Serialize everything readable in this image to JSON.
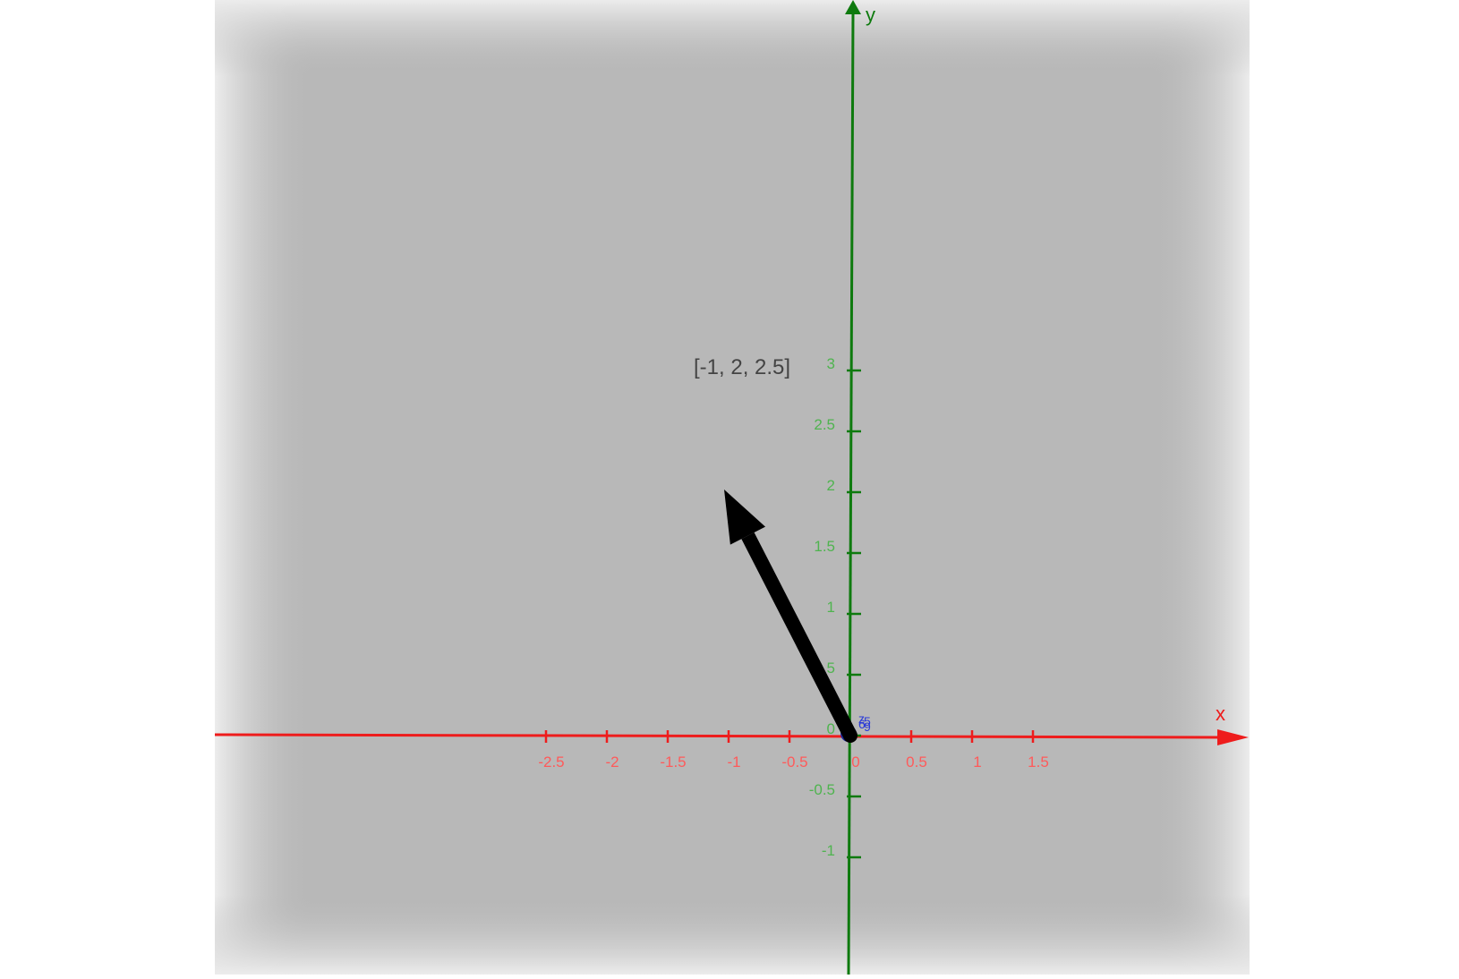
{
  "view": {
    "x_axis": {
      "label": "x",
      "color": "#ee1c1c",
      "ticks": [
        -2.5,
        -2,
        -1.5,
        -1,
        -0.5,
        0,
        0.5,
        1,
        1.5
      ],
      "tick_labels": [
        "-2.5",
        "-2",
        "-1.5",
        "-1",
        "-0.5",
        "0",
        "0.5",
        "1",
        "1.5"
      ],
      "range": [
        -2.6,
        1.6
      ]
    },
    "y_axis": {
      "label": "y",
      "color": "#0e7a0e",
      "ticks": [
        -1,
        -0.5,
        0,
        0.5,
        1,
        1.5,
        2,
        2.5,
        3
      ],
      "tick_labels": [
        "-1",
        "-0.5",
        "0",
        "0.5",
        "1",
        "1.5",
        "2",
        "2.5",
        "3"
      ],
      "range": [
        -1.05,
        3.0
      ]
    },
    "background": "#b8b8b8",
    "origin_marker_labels": [
      "z",
      "5",
      "6",
      "9"
    ],
    "origin_marker_color": "#2a3ad8"
  },
  "vector": {
    "label": "[-1, 2, 2.5]",
    "tail": [
      0,
      0
    ],
    "head": [
      -1,
      2
    ],
    "color": "#000000"
  }
}
